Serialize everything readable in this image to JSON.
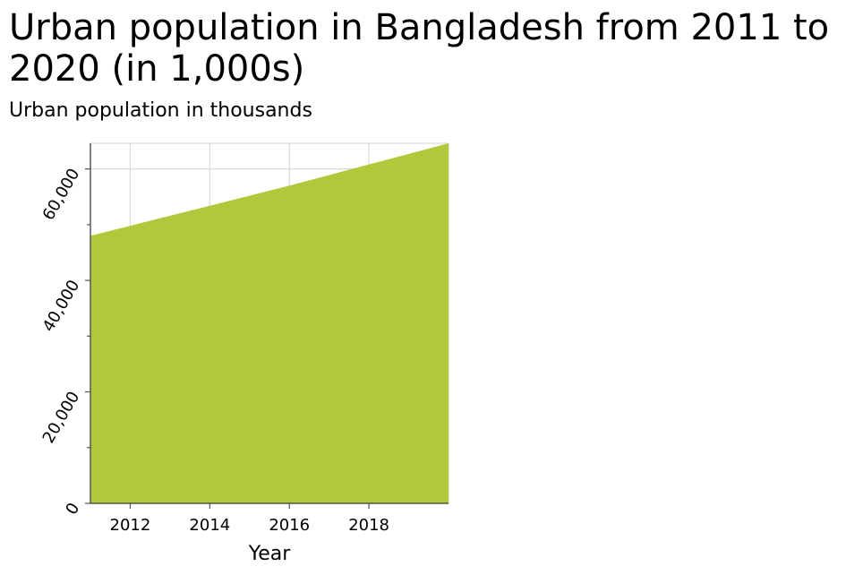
{
  "chart_data": {
    "type": "area",
    "title": "Urban population in Bangladesh from 2011 to 2020 (in 1,000s)",
    "subtitle": "Urban population in thousands",
    "xlabel": "Year",
    "ylabel": "",
    "x": [
      2011,
      2012,
      2013,
      2014,
      2015,
      2016,
      2017,
      2018,
      2019,
      2020
    ],
    "series": [
      {
        "values": [
          48000,
          49800,
          51600,
          53400,
          55200,
          57000,
          58900,
          60800,
          62700,
          64600
        ]
      }
    ],
    "xlim": [
      2011,
      2020
    ],
    "ylim": [
      0,
      64600
    ],
    "x_ticks": [
      2012,
      2014,
      2016,
      2018
    ],
    "x_tick_labels": [
      "2012",
      "2014",
      "2016",
      "2018"
    ],
    "y_ticks": [
      0,
      20000,
      40000,
      60000
    ],
    "y_tick_labels": [
      "0",
      "20,000",
      "40,000",
      "60,000"
    ],
    "y_minor_ticks": [
      10000,
      30000,
      50000
    ],
    "grid": true,
    "colors": {
      "fill": "#b0c93b",
      "grid": "#d9d9d9",
      "axis": "#555555"
    }
  }
}
